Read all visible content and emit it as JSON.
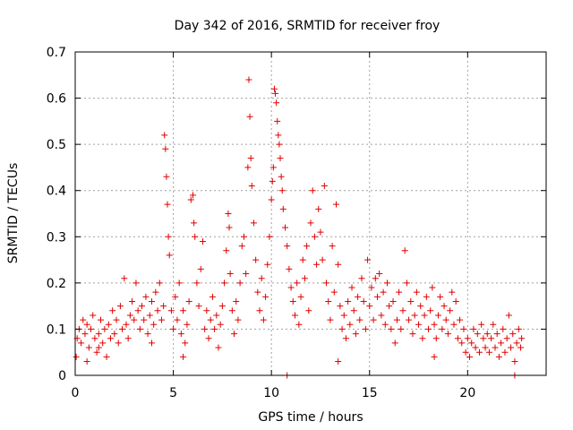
{
  "chart_data": {
    "type": "scatter",
    "title": "Day 342 of 2016, SRMTID for receiver froy",
    "xlabel": "GPS time / hours",
    "ylabel": "SRMTID / TECUs",
    "xlim": [
      0,
      24
    ],
    "ylim": [
      0,
      0.7
    ],
    "xticks": [
      0,
      5,
      10,
      15,
      20
    ],
    "yticks": [
      0,
      0.1,
      0.2,
      0.3,
      0.4,
      0.5,
      0.6,
      0.7
    ],
    "xtick_labels": [
      "0",
      "5",
      "10",
      "15",
      "20"
    ],
    "ytick_labels": [
      "0",
      "0.1",
      "0.2",
      "0.3",
      "0.4",
      "0.5",
      "0.6",
      "0.7"
    ],
    "grid": true,
    "marker": "+",
    "color": "#e00000",
    "series": [
      {
        "name": "SRMTID",
        "points": [
          [
            0.1,
            0.08
          ],
          [
            0.2,
            0.1
          ],
          [
            0.3,
            0.07
          ],
          [
            0.4,
            0.12
          ],
          [
            0.5,
            0.09
          ],
          [
            0.6,
            0.11
          ],
          [
            0.7,
            0.06
          ],
          [
            0.8,
            0.1
          ],
          [
            0.9,
            0.13
          ],
          [
            1.0,
            0.08
          ],
          [
            1.1,
            0.05
          ],
          [
            1.2,
            0.09
          ],
          [
            1.3,
            0.12
          ],
          [
            1.4,
            0.07
          ],
          [
            1.5,
            0.1
          ],
          [
            1.6,
            0.04
          ],
          [
            1.7,
            0.11
          ],
          [
            1.8,
            0.08
          ],
          [
            1.9,
            0.14
          ],
          [
            2.0,
            0.09
          ],
          [
            2.1,
            0.12
          ],
          [
            2.2,
            0.07
          ],
          [
            2.3,
            0.15
          ],
          [
            2.4,
            0.1
          ],
          [
            2.5,
            0.21
          ],
          [
            2.6,
            0.11
          ],
          [
            2.7,
            0.08
          ],
          [
            2.8,
            0.13
          ],
          [
            2.9,
            0.16
          ],
          [
            3.0,
            0.12
          ],
          [
            3.1,
            0.2
          ],
          [
            3.2,
            0.14
          ],
          [
            3.3,
            0.1
          ],
          [
            3.4,
            0.15
          ],
          [
            3.5,
            0.12
          ],
          [
            3.6,
            0.17
          ],
          [
            3.7,
            0.09
          ],
          [
            3.8,
            0.13
          ],
          [
            3.9,
            0.16
          ],
          [
            4.0,
            0.11
          ],
          [
            4.1,
            0.18
          ],
          [
            4.2,
            0.14
          ],
          [
            4.3,
            0.2
          ],
          [
            4.4,
            0.12
          ],
          [
            4.5,
            0.15
          ],
          [
            4.55,
            0.52
          ],
          [
            4.6,
            0.49
          ],
          [
            4.65,
            0.43
          ],
          [
            4.7,
            0.37
          ],
          [
            4.75,
            0.3
          ],
          [
            4.8,
            0.26
          ],
          [
            4.9,
            0.14
          ],
          [
            5.0,
            0.1
          ],
          [
            5.1,
            0.17
          ],
          [
            5.2,
            0.12
          ],
          [
            5.3,
            0.2
          ],
          [
            5.4,
            0.09
          ],
          [
            5.5,
            0.14
          ],
          [
            5.6,
            0.07
          ],
          [
            5.7,
            0.11
          ],
          [
            5.8,
            0.16
          ],
          [
            5.9,
            0.38
          ],
          [
            6.0,
            0.39
          ],
          [
            6.05,
            0.33
          ],
          [
            6.1,
            0.3
          ],
          [
            6.2,
            0.2
          ],
          [
            6.3,
            0.15
          ],
          [
            6.4,
            0.23
          ],
          [
            6.5,
            0.29
          ],
          [
            6.6,
            0.1
          ],
          [
            6.7,
            0.14
          ],
          [
            6.8,
            0.08
          ],
          [
            6.9,
            0.12
          ],
          [
            7.0,
            0.17
          ],
          [
            7.1,
            0.1
          ],
          [
            7.2,
            0.13
          ],
          [
            7.3,
            0.06
          ],
          [
            7.4,
            0.11
          ],
          [
            7.5,
            0.15
          ],
          [
            7.6,
            0.2
          ],
          [
            7.7,
            0.27
          ],
          [
            7.8,
            0.35
          ],
          [
            7.85,
            0.32
          ],
          [
            7.9,
            0.22
          ],
          [
            8.0,
            0.14
          ],
          [
            8.1,
            0.09
          ],
          [
            8.2,
            0.16
          ],
          [
            8.3,
            0.12
          ],
          [
            8.4,
            0.2
          ],
          [
            8.5,
            0.28
          ],
          [
            8.6,
            0.3
          ],
          [
            8.7,
            0.22
          ],
          [
            8.8,
            0.45
          ],
          [
            8.85,
            0.64
          ],
          [
            8.9,
            0.56
          ],
          [
            8.95,
            0.47
          ],
          [
            9.0,
            0.41
          ],
          [
            9.1,
            0.33
          ],
          [
            9.2,
            0.25
          ],
          [
            9.3,
            0.18
          ],
          [
            9.4,
            0.14
          ],
          [
            9.5,
            0.21
          ],
          [
            9.6,
            0.12
          ],
          [
            9.7,
            0.17
          ],
          [
            9.8,
            0.24
          ],
          [
            9.9,
            0.3
          ],
          [
            10.0,
            0.38
          ],
          [
            10.05,
            0.42
          ],
          [
            10.1,
            0.45
          ],
          [
            10.15,
            0.62
          ],
          [
            10.2,
            0.61
          ],
          [
            10.25,
            0.59
          ],
          [
            10.3,
            0.55
          ],
          [
            10.35,
            0.52
          ],
          [
            10.4,
            0.5
          ],
          [
            10.45,
            0.47
          ],
          [
            10.5,
            0.43
          ],
          [
            10.55,
            0.4
          ],
          [
            10.6,
            0.36
          ],
          [
            10.7,
            0.32
          ],
          [
            10.8,
            0.28
          ],
          [
            10.9,
            0.23
          ],
          [
            11.0,
            0.19
          ],
          [
            11.1,
            0.16
          ],
          [
            11.2,
            0.13
          ],
          [
            11.3,
            0.2
          ],
          [
            11.4,
            0.11
          ],
          [
            11.5,
            0.17
          ],
          [
            11.6,
            0.25
          ],
          [
            11.7,
            0.21
          ],
          [
            11.8,
            0.28
          ],
          [
            11.9,
            0.14
          ],
          [
            12.0,
            0.33
          ],
          [
            12.1,
            0.4
          ],
          [
            12.2,
            0.3
          ],
          [
            12.3,
            0.24
          ],
          [
            12.4,
            0.36
          ],
          [
            12.5,
            0.31
          ],
          [
            12.6,
            0.25
          ],
          [
            12.7,
            0.41
          ],
          [
            12.8,
            0.2
          ],
          [
            12.9,
            0.16
          ],
          [
            13.0,
            0.12
          ],
          [
            13.1,
            0.28
          ],
          [
            13.2,
            0.18
          ],
          [
            13.3,
            0.37
          ],
          [
            13.4,
            0.24
          ],
          [
            13.5,
            0.15
          ],
          [
            13.6,
            0.1
          ],
          [
            13.7,
            0.13
          ],
          [
            13.8,
            0.08
          ],
          [
            13.9,
            0.16
          ],
          [
            14.0,
            0.11
          ],
          [
            14.1,
            0.19
          ],
          [
            14.2,
            0.14
          ],
          [
            14.3,
            0.09
          ],
          [
            14.4,
            0.17
          ],
          [
            14.5,
            0.12
          ],
          [
            14.6,
            0.21
          ],
          [
            14.7,
            0.16
          ],
          [
            14.8,
            0.1
          ],
          [
            14.9,
            0.25
          ],
          [
            15.0,
            0.15
          ],
          [
            15.1,
            0.19
          ],
          [
            15.2,
            0.12
          ],
          [
            15.3,
            0.21
          ],
          [
            15.4,
            0.17
          ],
          [
            15.5,
            0.22
          ],
          [
            15.6,
            0.13
          ],
          [
            15.7,
            0.18
          ],
          [
            15.8,
            0.11
          ],
          [
            15.9,
            0.2
          ],
          [
            16.0,
            0.15
          ],
          [
            16.1,
            0.1
          ],
          [
            16.2,
            0.16
          ],
          [
            16.3,
            0.07
          ],
          [
            16.4,
            0.12
          ],
          [
            16.5,
            0.18
          ],
          [
            16.6,
            0.1
          ],
          [
            16.7,
            0.14
          ],
          [
            16.8,
            0.27
          ],
          [
            16.9,
            0.2
          ],
          [
            17.0,
            0.12
          ],
          [
            17.1,
            0.16
          ],
          [
            17.2,
            0.09
          ],
          [
            17.3,
            0.13
          ],
          [
            17.4,
            0.18
          ],
          [
            17.5,
            0.11
          ],
          [
            17.6,
            0.15
          ],
          [
            17.7,
            0.08
          ],
          [
            17.8,
            0.13
          ],
          [
            17.9,
            0.17
          ],
          [
            18.0,
            0.1
          ],
          [
            18.1,
            0.14
          ],
          [
            18.2,
            0.19
          ],
          [
            18.3,
            0.11
          ],
          [
            18.4,
            0.08
          ],
          [
            18.5,
            0.13
          ],
          [
            18.6,
            0.17
          ],
          [
            18.7,
            0.1
          ],
          [
            18.8,
            0.15
          ],
          [
            18.9,
            0.12
          ],
          [
            19.0,
            0.09
          ],
          [
            19.1,
            0.14
          ],
          [
            19.2,
            0.18
          ],
          [
            19.3,
            0.11
          ],
          [
            19.4,
            0.16
          ],
          [
            19.5,
            0.08
          ],
          [
            19.6,
            0.12
          ],
          [
            19.7,
            0.07
          ],
          [
            19.8,
            0.1
          ],
          [
            19.9,
            0.05
          ],
          [
            20.0,
            0.08
          ],
          [
            20.1,
            0.04
          ],
          [
            20.2,
            0.07
          ],
          [
            20.3,
            0.1
          ],
          [
            20.4,
            0.06
          ],
          [
            20.5,
            0.09
          ],
          [
            20.6,
            0.05
          ],
          [
            20.7,
            0.11
          ],
          [
            20.8,
            0.08
          ],
          [
            20.9,
            0.06
          ],
          [
            21.0,
            0.09
          ],
          [
            21.1,
            0.05
          ],
          [
            21.2,
            0.08
          ],
          [
            21.3,
            0.11
          ],
          [
            21.4,
            0.06
          ],
          [
            21.5,
            0.09
          ],
          [
            21.6,
            0.04
          ],
          [
            21.7,
            0.07
          ],
          [
            21.8,
            0.1
          ],
          [
            21.9,
            0.05
          ],
          [
            22.0,
            0.08
          ],
          [
            22.1,
            0.13
          ],
          [
            22.2,
            0.06
          ],
          [
            22.3,
            0.09
          ],
          [
            22.4,
            0.03
          ],
          [
            22.5,
            0.07
          ],
          [
            22.6,
            0.1
          ],
          [
            22.7,
            0.06
          ],
          [
            22.75,
            0.08
          ],
          [
            10.8,
            0.0
          ],
          [
            22.4,
            0.0
          ],
          [
            0.05,
            0.04
          ],
          [
            0.6,
            0.03
          ],
          [
            1.2,
            0.06
          ],
          [
            5.5,
            0.04
          ],
          [
            13.4,
            0.03
          ],
          [
            18.3,
            0.04
          ],
          [
            3.9,
            0.07
          ]
        ]
      }
    ]
  }
}
